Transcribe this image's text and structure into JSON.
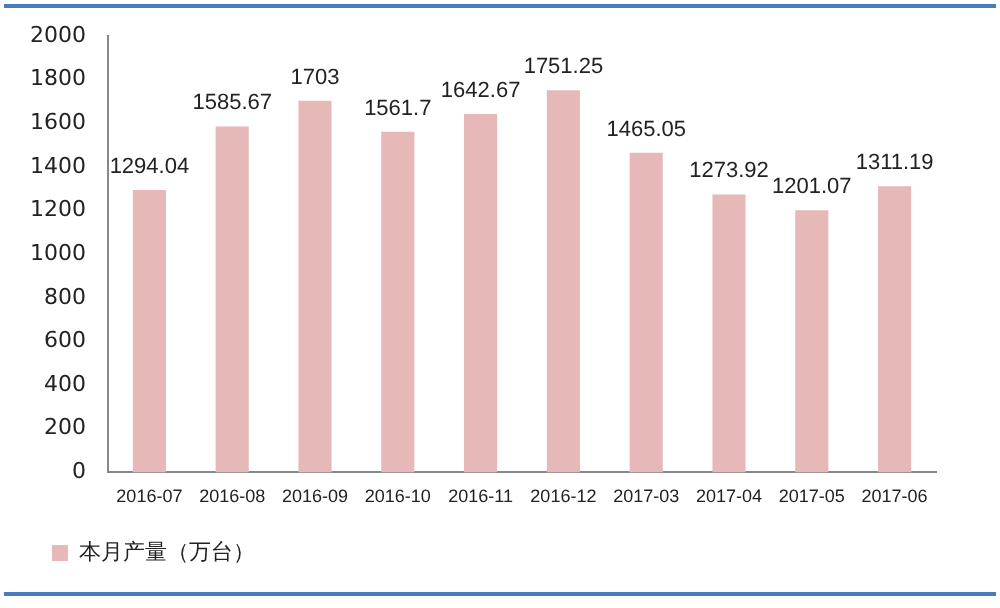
{
  "chart_data": {
    "type": "bar",
    "categories": [
      "2016-07",
      "2016-08",
      "2016-09",
      "2016-10",
      "2016-11",
      "2016-12",
      "2017-03",
      "2017-04",
      "2017-05",
      "2017-06"
    ],
    "series": [
      {
        "name": "本月产量（万台）",
        "color": "#e6b8b7",
        "values": [
          1294.04,
          1585.67,
          1703,
          1561.7,
          1642.67,
          1751.25,
          1465.05,
          1273.92,
          1201.07,
          1311.19
        ]
      }
    ],
    "ylim": [
      0,
      2000
    ],
    "yticks": [
      0,
      200,
      400,
      600,
      800,
      1000,
      1200,
      1400,
      1600,
      1800,
      2000
    ],
    "grid": false,
    "legend": "bottom left",
    "data_labels": true
  }
}
